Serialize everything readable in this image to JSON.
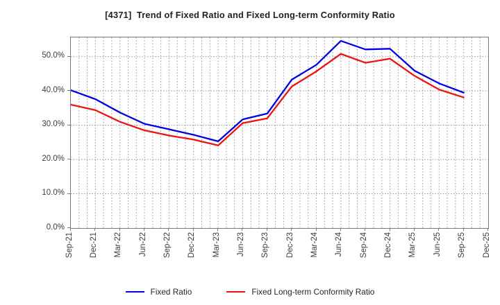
{
  "title": "[4371]  Trend of Fixed Ratio and Fixed Long-term Conformity Ratio",
  "chart_data": {
    "type": "line",
    "x_labels": [
      "Sep-21",
      "Dec-21",
      "Mar-22",
      "Jun-22",
      "Sep-22",
      "Dec-22",
      "Mar-23",
      "Jun-23",
      "Sep-23",
      "Dec-23",
      "Mar-24",
      "Jun-24",
      "Sep-24",
      "Dec-24",
      "Mar-25",
      "Jun-25",
      "Sep-25",
      "Dec-25"
    ],
    "series": [
      {
        "name": "Fixed Ratio",
        "color": "#0000e6",
        "values": [
          40.2,
          37.6,
          33.7,
          30.4,
          28.8,
          27.2,
          25.3,
          31.7,
          33.4,
          43.3,
          47.6,
          54.6,
          52.1,
          52.3,
          45.9,
          42.2,
          39.5
        ]
      },
      {
        "name": "Fixed Long-term Conformity Ratio",
        "color": "#ee1111",
        "values": [
          36.0,
          34.4,
          31.0,
          28.5,
          27.0,
          25.8,
          24.1,
          30.6,
          32.0,
          41.3,
          45.7,
          50.8,
          48.2,
          49.4,
          44.4,
          40.4,
          38.1
        ]
      }
    ],
    "y_ticks": [
      {
        "value": 0,
        "label": "0.0%"
      },
      {
        "value": 10,
        "label": "10.0%"
      },
      {
        "value": 20,
        "label": "20.0%"
      },
      {
        "value": 30,
        "label": "30.0%"
      },
      {
        "value": 40,
        "label": "40.0%"
      },
      {
        "value": 50,
        "label": "50.0%"
      }
    ],
    "ylim": [
      0,
      55.6
    ],
    "grid": "dotted",
    "minor_x_divisions_per_interval": 3,
    "legend_position": "bottom-center",
    "colors": {
      "grid": "#999999",
      "axis_border": "#787878",
      "tick_label": "#3c3c3c",
      "title": "#1f1f1f",
      "background": "#ffffff"
    }
  }
}
